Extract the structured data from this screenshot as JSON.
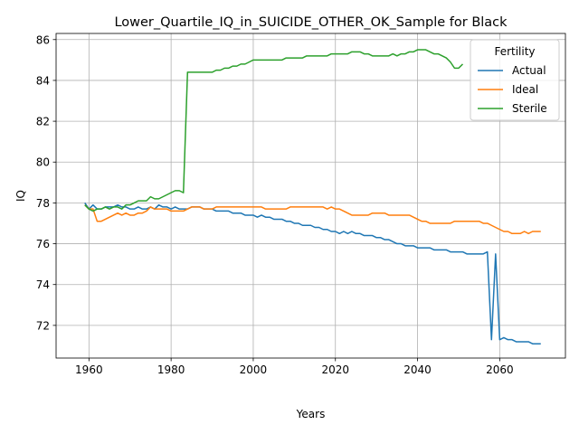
{
  "chart_data": {
    "type": "line",
    "title": "Lower_Quartile_IQ_in_SUICIDE_OTHER_OK_Sample for Black",
    "xlabel": "Years",
    "ylabel": "IQ",
    "xlim": [
      1952,
      2076
    ],
    "ylim": [
      70.4,
      86.3
    ],
    "xticks": [
      1960,
      1980,
      2000,
      2020,
      2040,
      2060
    ],
    "yticks": [
      72,
      74,
      76,
      78,
      80,
      82,
      84,
      86
    ],
    "grid": true,
    "legend": {
      "title": "Fertility",
      "placement": "top-right"
    },
    "series": [
      {
        "name": "Actual",
        "color": "#1f77b4",
        "x": [
          1959,
          1960,
          1961,
          1962,
          1963,
          1964,
          1965,
          1966,
          1967,
          1968,
          1969,
          1970,
          1971,
          1972,
          1973,
          1974,
          1975,
          1976,
          1977,
          1978,
          1979,
          1980,
          1981,
          1982,
          1983,
          1984,
          1985,
          1986,
          1987,
          1988,
          1989,
          1990,
          1991,
          1992,
          1993,
          1994,
          1995,
          1996,
          1997,
          1998,
          1999,
          2000,
          2001,
          2002,
          2003,
          2004,
          2005,
          2006,
          2007,
          2008,
          2009,
          2010,
          2011,
          2012,
          2013,
          2014,
          2015,
          2016,
          2017,
          2018,
          2019,
          2020,
          2021,
          2022,
          2023,
          2024,
          2025,
          2026,
          2027,
          2028,
          2029,
          2030,
          2031,
          2032,
          2033,
          2034,
          2035,
          2036,
          2037,
          2038,
          2039,
          2040,
          2041,
          2042,
          2043,
          2044,
          2045,
          2046,
          2047,
          2048,
          2049,
          2050,
          2051,
          2052,
          2053,
          2054,
          2055,
          2056,
          2057,
          2058,
          2059,
          2060,
          2061,
          2062,
          2063,
          2064,
          2065,
          2066,
          2067,
          2068,
          2069,
          2070
        ],
        "values": [
          78.0,
          77.7,
          77.9,
          77.7,
          77.7,
          77.8,
          77.8,
          77.8,
          77.9,
          77.8,
          77.8,
          77.7,
          77.7,
          77.8,
          77.7,
          77.7,
          77.8,
          77.7,
          77.9,
          77.8,
          77.8,
          77.7,
          77.8,
          77.7,
          77.7,
          77.7,
          77.8,
          77.8,
          77.8,
          77.7,
          77.7,
          77.7,
          77.6,
          77.6,
          77.6,
          77.6,
          77.5,
          77.5,
          77.5,
          77.4,
          77.4,
          77.4,
          77.3,
          77.4,
          77.3,
          77.3,
          77.2,
          77.2,
          77.2,
          77.1,
          77.1,
          77.0,
          77.0,
          76.9,
          76.9,
          76.9,
          76.8,
          76.8,
          76.7,
          76.7,
          76.6,
          76.6,
          76.5,
          76.6,
          76.5,
          76.6,
          76.5,
          76.5,
          76.4,
          76.4,
          76.4,
          76.3,
          76.3,
          76.2,
          76.2,
          76.1,
          76.0,
          76.0,
          75.9,
          75.9,
          75.9,
          75.8,
          75.8,
          75.8,
          75.8,
          75.7,
          75.7,
          75.7,
          75.7,
          75.6,
          75.6,
          75.6,
          75.6,
          75.5,
          75.5,
          75.5,
          75.5,
          75.5,
          75.6,
          71.3,
          75.5,
          71.3,
          71.4,
          71.3,
          71.3,
          71.2,
          71.2,
          71.2,
          71.2,
          71.1,
          71.1,
          71.1
        ]
      },
      {
        "name": "Ideal",
        "color": "#ff7f0e",
        "x": [
          1959,
          1960,
          1961,
          1962,
          1963,
          1964,
          1965,
          1966,
          1967,
          1968,
          1969,
          1970,
          1971,
          1972,
          1973,
          1974,
          1975,
          1976,
          1977,
          1978,
          1979,
          1980,
          1981,
          1982,
          1983,
          1984,
          1985,
          1986,
          1987,
          1988,
          1989,
          1990,
          1991,
          1992,
          1993,
          1994,
          1995,
          1996,
          1997,
          1998,
          1999,
          2000,
          2001,
          2002,
          2003,
          2004,
          2005,
          2006,
          2007,
          2008,
          2009,
          2010,
          2011,
          2012,
          2013,
          2014,
          2015,
          2016,
          2017,
          2018,
          2019,
          2020,
          2021,
          2022,
          2023,
          2024,
          2025,
          2026,
          2027,
          2028,
          2029,
          2030,
          2031,
          2032,
          2033,
          2034,
          2035,
          2036,
          2037,
          2038,
          2039,
          2040,
          2041,
          2042,
          2043,
          2044,
          2045,
          2046,
          2047,
          2048,
          2049,
          2050,
          2051,
          2052,
          2053,
          2054,
          2055,
          2056,
          2057,
          2058,
          2059,
          2060,
          2061,
          2062,
          2063,
          2064,
          2065,
          2066,
          2067,
          2068,
          2069,
          2070
        ],
        "values": [
          77.9,
          77.7,
          77.7,
          77.1,
          77.1,
          77.2,
          77.3,
          77.4,
          77.5,
          77.4,
          77.5,
          77.4,
          77.4,
          77.5,
          77.5,
          77.6,
          77.8,
          77.7,
          77.7,
          77.7,
          77.7,
          77.6,
          77.6,
          77.6,
          77.6,
          77.7,
          77.8,
          77.8,
          77.8,
          77.7,
          77.7,
          77.7,
          77.8,
          77.8,
          77.8,
          77.8,
          77.8,
          77.8,
          77.8,
          77.8,
          77.8,
          77.8,
          77.8,
          77.8,
          77.7,
          77.7,
          77.7,
          77.7,
          77.7,
          77.7,
          77.8,
          77.8,
          77.8,
          77.8,
          77.8,
          77.8,
          77.8,
          77.8,
          77.8,
          77.7,
          77.8,
          77.7,
          77.7,
          77.6,
          77.5,
          77.4,
          77.4,
          77.4,
          77.4,
          77.4,
          77.5,
          77.5,
          77.5,
          77.5,
          77.4,
          77.4,
          77.4,
          77.4,
          77.4,
          77.4,
          77.3,
          77.2,
          77.1,
          77.1,
          77.0,
          77.0,
          77.0,
          77.0,
          77.0,
          77.0,
          77.1,
          77.1,
          77.1,
          77.1,
          77.1,
          77.1,
          77.1,
          77.0,
          77.0,
          76.9,
          76.8,
          76.7,
          76.6,
          76.6,
          76.5,
          76.5,
          76.5,
          76.6,
          76.5,
          76.6,
          76.6,
          76.6
        ]
      },
      {
        "name": "Sterile",
        "color": "#2ca02c",
        "x": [
          1959,
          1960,
          1961,
          1962,
          1963,
          1964,
          1965,
          1966,
          1967,
          1968,
          1969,
          1970,
          1971,
          1972,
          1973,
          1974,
          1975,
          1976,
          1977,
          1978,
          1979,
          1980,
          1981,
          1982,
          1983,
          1984,
          1985,
          1986,
          1987,
          1988,
          1989,
          1990,
          1991,
          1992,
          1993,
          1994,
          1995,
          1996,
          1997,
          1998,
          1999,
          2000,
          2001,
          2002,
          2003,
          2004,
          2005,
          2006,
          2007,
          2008,
          2009,
          2010,
          2011,
          2012,
          2013,
          2014,
          2015,
          2016,
          2017,
          2018,
          2019,
          2020,
          2021,
          2022,
          2023,
          2024,
          2025,
          2026,
          2027,
          2028,
          2029,
          2030,
          2031,
          2032,
          2033,
          2034,
          2035,
          2036,
          2037,
          2038,
          2039,
          2040,
          2041,
          2042,
          2043,
          2044,
          2045,
          2046,
          2047,
          2048,
          2049,
          2050,
          2051
        ],
        "values": [
          77.9,
          77.7,
          77.6,
          77.7,
          77.7,
          77.8,
          77.7,
          77.8,
          77.8,
          77.7,
          77.9,
          77.9,
          78.0,
          78.1,
          78.1,
          78.1,
          78.3,
          78.2,
          78.2,
          78.3,
          78.4,
          78.5,
          78.6,
          78.6,
          78.5,
          84.4,
          84.4,
          84.4,
          84.4,
          84.4,
          84.4,
          84.4,
          84.5,
          84.5,
          84.6,
          84.6,
          84.7,
          84.7,
          84.8,
          84.8,
          84.9,
          85.0,
          85.0,
          85.0,
          85.0,
          85.0,
          85.0,
          85.0,
          85.0,
          85.1,
          85.1,
          85.1,
          85.1,
          85.1,
          85.2,
          85.2,
          85.2,
          85.2,
          85.2,
          85.2,
          85.3,
          85.3,
          85.3,
          85.3,
          85.3,
          85.4,
          85.4,
          85.4,
          85.3,
          85.3,
          85.2,
          85.2,
          85.2,
          85.2,
          85.2,
          85.3,
          85.2,
          85.3,
          85.3,
          85.4,
          85.4,
          85.5,
          85.5,
          85.5,
          85.4,
          85.3,
          85.3,
          85.2,
          85.1,
          84.9,
          84.6,
          84.6,
          84.8
        ]
      }
    ]
  }
}
